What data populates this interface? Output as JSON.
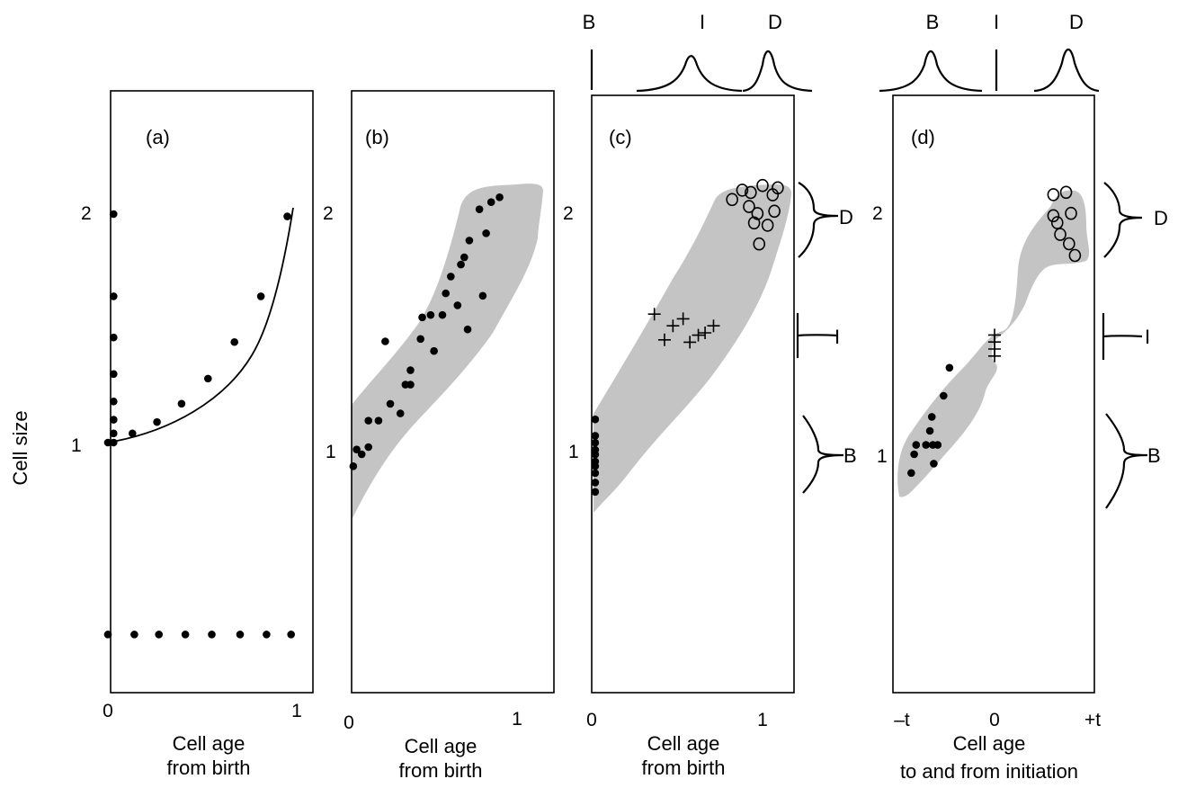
{
  "chart_data": {
    "type": "scatter",
    "ylabel": "Cell size",
    "panels": [
      {
        "label": "(a)",
        "xlabel_lines": [
          "Cell age",
          "from birth"
        ],
        "xticks": [
          "0",
          "1"
        ],
        "yticks": [
          "1",
          "2"
        ],
        "xlim": [
          0,
          1
        ],
        "series": [
          {
            "values": [
              [
                0.03,
                2.0
              ],
              [
                0.03,
                1.64
              ],
              [
                0.03,
                1.46
              ],
              [
                0.03,
                1.3
              ],
              [
                0.03,
                1.18
              ],
              [
                0.03,
                1.1
              ],
              [
                0.03,
                1.04
              ],
              [
                0.03,
                1.0
              ],
              [
                0.0,
                0.16
              ],
              [
                0.14,
                0.16
              ],
              [
                0.27,
                0.16
              ],
              [
                0.41,
                0.16
              ],
              [
                0.55,
                0.16
              ],
              [
                0.7,
                0.16
              ],
              [
                0.84,
                0.16
              ],
              [
                0.97,
                0.16
              ]
            ]
          },
          {
            "values": [
              [
                0.0,
                1.0
              ],
              [
                0.13,
                1.04
              ],
              [
                0.26,
                1.09
              ],
              [
                0.39,
                1.17
              ],
              [
                0.53,
                1.28
              ],
              [
                0.67,
                1.44
              ],
              [
                0.81,
                1.64
              ],
              [
                0.95,
                1.99
              ]
            ]
          }
        ],
        "fitted_curve": "exponential: size = 2^age"
      },
      {
        "label": "(b)",
        "xlabel_lines": [
          "Cell age",
          "from birth"
        ],
        "xticks": [
          "0",
          "1"
        ],
        "yticks": [
          "1",
          "2"
        ],
        "series": [
          {
            "values": [
              [
                0.01,
                0.95
              ],
              [
                0.03,
                1.02
              ],
              [
                0.06,
                1.0
              ],
              [
                0.1,
                1.03
              ],
              [
                0.1,
                1.14
              ],
              [
                0.16,
                1.14
              ],
              [
                0.2,
                1.47
              ],
              [
                0.23,
                1.21
              ],
              [
                0.29,
                1.17
              ],
              [
                0.32,
                1.29
              ],
              [
                0.35,
                1.29
              ],
              [
                0.35,
                1.35
              ],
              [
                0.41,
                1.48
              ],
              [
                0.42,
                1.57
              ],
              [
                0.47,
                1.58
              ],
              [
                0.49,
                1.43
              ],
              [
                0.54,
                1.58
              ],
              [
                0.56,
                1.67
              ],
              [
                0.59,
                1.74
              ],
              [
                0.63,
                1.62
              ],
              [
                0.65,
                1.79
              ],
              [
                0.67,
                1.82
              ],
              [
                0.69,
                1.52
              ],
              [
                0.7,
                1.89
              ],
              [
                0.76,
                2.02
              ],
              [
                0.78,
                1.66
              ],
              [
                0.8,
                1.92
              ],
              [
                0.83,
                2.05
              ],
              [
                0.88,
                2.07
              ]
            ]
          }
        ]
      },
      {
        "label": "(c)",
        "xlabel_lines": [
          "Cell age",
          "from birth"
        ],
        "xticks": [
          "0",
          "1"
        ],
        "yticks": [
          "1",
          "2"
        ],
        "top_labels": [
          "B",
          "I",
          "D"
        ],
        "right_labels": [
          "D",
          "I",
          "B"
        ],
        "series": [
          {
            "name": "B",
            "marker": "dot",
            "values": [
              [
                0.01,
                1.13
              ],
              [
                0.01,
                1.06
              ],
              [
                0.01,
                1.03
              ],
              [
                0.01,
                1.0
              ],
              [
                0.01,
                0.98
              ],
              [
                0.01,
                0.95
              ],
              [
                0.01,
                0.93
              ],
              [
                0.01,
                0.9
              ],
              [
                0.01,
                0.86
              ],
              [
                0.01,
                0.82
              ]
            ]
          },
          {
            "name": "I",
            "marker": "cross",
            "values": [
              [
                0.36,
                1.58
              ],
              [
                0.42,
                1.47
              ],
              [
                0.47,
                1.53
              ],
              [
                0.53,
                1.56
              ],
              [
                0.57,
                1.46
              ],
              [
                0.62,
                1.49
              ],
              [
                0.66,
                1.5
              ],
              [
                0.71,
                1.53
              ]
            ]
          },
          {
            "name": "D",
            "marker": "circle",
            "values": [
              [
                0.82,
                2.07
              ],
              [
                0.88,
                2.11
              ],
              [
                0.92,
                2.04
              ],
              [
                0.93,
                2.1
              ],
              [
                0.95,
                1.97
              ],
              [
                0.97,
                2.01
              ],
              [
                0.98,
                1.88
              ],
              [
                1.0,
                2.13
              ],
              [
                1.03,
                1.96
              ],
              [
                1.06,
                2.09
              ],
              [
                1.07,
                2.02
              ],
              [
                1.09,
                2.12
              ]
            ]
          }
        ]
      },
      {
        "label": "(d)",
        "xlabel_lines": [
          "Cell age",
          "to and from initiation"
        ],
        "xticks": [
          "–t",
          "0",
          "+t"
        ],
        "yticks": [
          "1",
          "2"
        ],
        "top_labels": [
          "B",
          "I",
          "D"
        ],
        "right_labels": [
          "D",
          "I",
          "B"
        ],
        "series": [
          {
            "name": "B",
            "marker": "dot",
            "values": [
              [
                -0.85,
                0.92
              ],
              [
                -0.82,
                1.0
              ],
              [
                -0.8,
                1.04
              ],
              [
                -0.7,
                1.04
              ],
              [
                -0.66,
                1.1
              ],
              [
                -0.64,
                1.16
              ],
              [
                -0.63,
                1.04
              ],
              [
                -0.62,
                0.96
              ],
              [
                -0.58,
                1.04
              ],
              [
                -0.52,
                1.25
              ],
              [
                -0.46,
                1.37
              ]
            ]
          },
          {
            "name": "I",
            "marker": "cross",
            "values": [
              [
                0.0,
                1.51
              ],
              [
                0.0,
                1.48
              ],
              [
                0.0,
                1.45
              ],
              [
                0.0,
                1.42
              ]
            ]
          },
          {
            "name": "D",
            "marker": "circle",
            "values": [
              [
                0.6,
                2.11
              ],
              [
                0.6,
                2.02
              ],
              [
                0.64,
                1.99
              ],
              [
                0.67,
                1.94
              ],
              [
                0.73,
                2.12
              ],
              [
                0.76,
                1.9
              ],
              [
                0.78,
                2.03
              ],
              [
                0.82,
                1.85
              ]
            ]
          }
        ]
      }
    ]
  }
}
